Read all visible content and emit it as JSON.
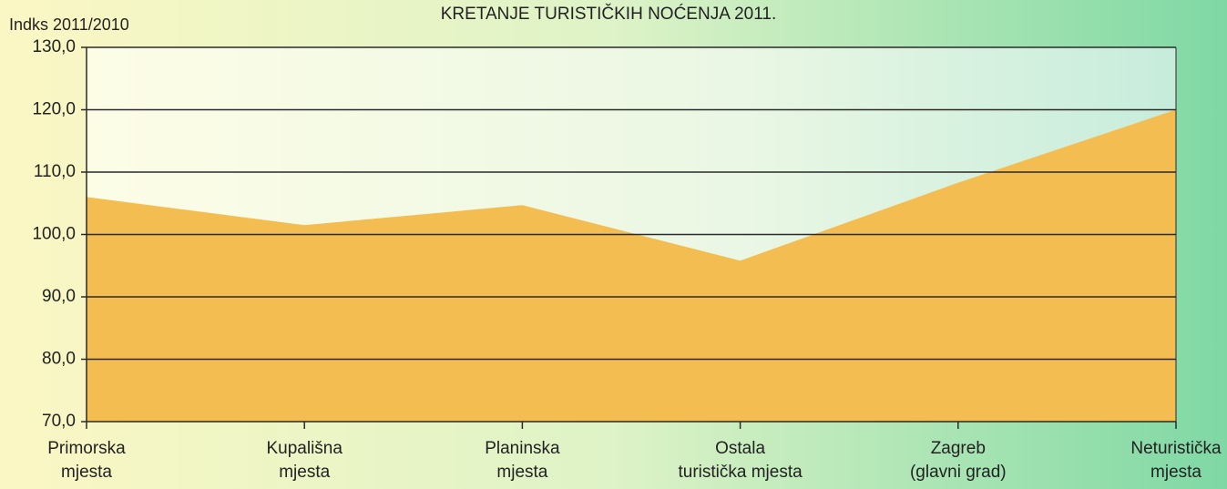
{
  "chart_data": {
    "type": "area",
    "title": "KRETANJE TURISTIČKIH NOĆENJA 2011.",
    "y_label": "Indks 2011/2010",
    "categories": [
      [
        "Primorska",
        "mjesta"
      ],
      [
        "Kupališna",
        "mjesta"
      ],
      [
        "Planinska",
        "mjesta"
      ],
      [
        "Ostala",
        "turistička mjesta"
      ],
      [
        "Zagreb",
        "(glavni grad)"
      ],
      [
        "Neturistička",
        "mjesta"
      ]
    ],
    "values": [
      106.0,
      101.5,
      104.7,
      95.8,
      108.3,
      120.0
    ],
    "color": "#f3bd52",
    "ylim": [
      70,
      130
    ],
    "yticks": [
      {
        "value": 70,
        "label": "70,0"
      },
      {
        "value": 80,
        "label": "80,0"
      },
      {
        "value": 90,
        "label": "90,0"
      },
      {
        "value": 100,
        "label": "100,0"
      },
      {
        "value": 110,
        "label": "110,0"
      },
      {
        "value": 120,
        "label": "120,0"
      },
      {
        "value": 130,
        "label": "130,0"
      }
    ],
    "grid": true
  }
}
